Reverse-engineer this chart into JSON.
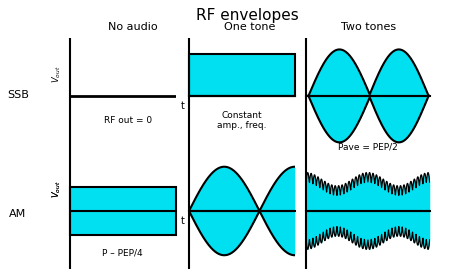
{
  "title": "RF envelopes",
  "title_fontsize": 11,
  "cyan_color": "#00e0f0",
  "black": "#000000",
  "col_labels": [
    "No audio",
    "One tone",
    "Two tones"
  ],
  "row_labels": [
    "SSB",
    "AM"
  ],
  "ssb_note0": "RF out = 0",
  "ssb_note1": "Constant\namp., freq.",
  "ssb_note2": "Pave = PEP/2",
  "am_note0": "P – PEP/4"
}
